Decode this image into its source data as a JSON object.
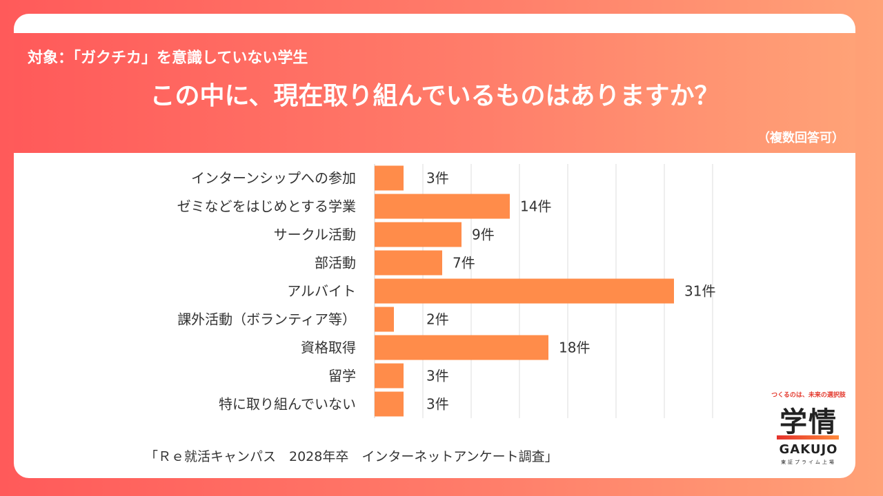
{
  "header": {
    "subject": "対象：「ガクチカ」を意識していない学生",
    "question": "この中に、現在取り組んでいるものはありますか？",
    "note": "（複数回答可）"
  },
  "chart_data": {
    "type": "bar",
    "orientation": "horizontal",
    "categories": [
      "インターンシップへの参加",
      "ゼミなどをはじめとする学業",
      "サークル活動",
      "部活動",
      "アルバイト",
      "課外活動（ボランティア等）",
      "資格取得",
      "留学",
      "特に取り組んでいない"
    ],
    "values": [
      3,
      14,
      9,
      7,
      31,
      2,
      18,
      3,
      3
    ],
    "value_labels": [
      "3件",
      "14件",
      "9件",
      "7件",
      "31件",
      "2件",
      "18件",
      "3件",
      "3件"
    ],
    "xlim": [
      0,
      35
    ],
    "grid": true,
    "bar_color": "#ff8c4a",
    "title": "",
    "xlabel": "",
    "ylabel": ""
  },
  "source": "「Ｒｅ就活キャンパス　2028年卒　インターネットアンケート調査」",
  "logo": {
    "tagline": "つくるのは、未来の選択肢",
    "mark": "学情",
    "name": "GAKUJO",
    "sub": "東証プライム上場"
  }
}
